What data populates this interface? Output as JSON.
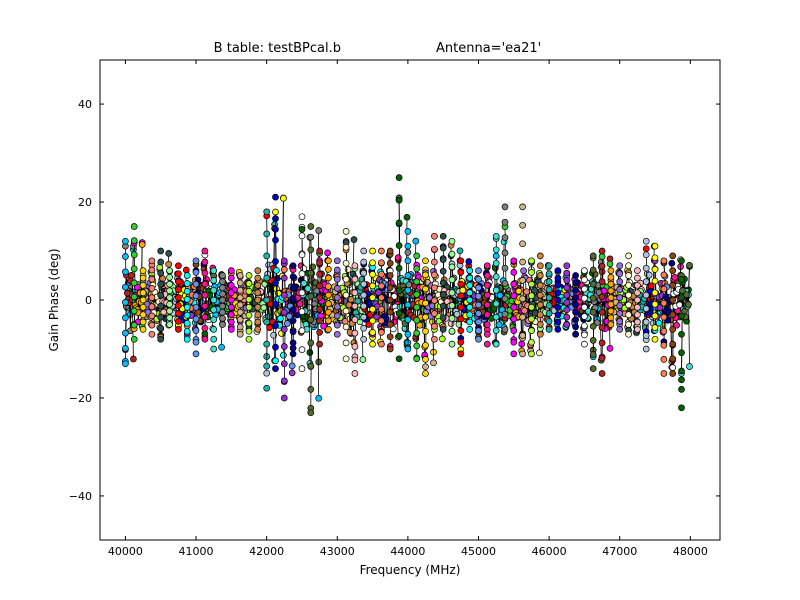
{
  "chart_data": {
    "type": "scatter",
    "title": "B table: testBPcal.b",
    "subtitle": "Antenna='ea21'",
    "xlabel": "Frequency (MHz)",
    "ylabel": "Gain Phase (deg)",
    "xlim": [
      39640,
      48420
    ],
    "ylim": [
      -49,
      49
    ],
    "xticks": [
      40000,
      41000,
      42000,
      43000,
      44000,
      45000,
      46000,
      47000,
      48000
    ],
    "yticks": [
      -40,
      -20,
      0,
      20,
      40
    ],
    "xtick_labels": [
      "40000",
      "41000",
      "42000",
      "43000",
      "44000",
      "45000",
      "46000",
      "47000",
      "48000"
    ],
    "ytick_labels": [
      "−40",
      "−20",
      "0",
      "20",
      "40"
    ],
    "grid": false,
    "marker": "circle",
    "connected": true,
    "spw_count": 64,
    "spw_start_mhz": 40000,
    "spw_width_mhz": 125,
    "channels_per_spw": 9,
    "palette": [
      "#00bfff",
      "#808080",
      "#b22222",
      "#32cd32",
      "#ff00ff",
      "#ffa500",
      "#ffd700",
      "#d2b48c",
      "#9370db",
      "#fa8072",
      "#adff2f",
      "#fffacd",
      "#2f4f4f",
      "#cd853f",
      "#ffb6c1",
      "#98fb98",
      "#20b2aa",
      "#b0c4de",
      "#ff0000",
      "#0000cd",
      "#ffff00",
      "#00ffff",
      "#9932cc",
      "#ff7f50",
      "#6495ed",
      "#00008b",
      "#8b4513",
      "#ff1493",
      "#ffffff",
      "#006400",
      "#40e0d0",
      "#556b2f"
    ],
    "series": [
      {
        "spw": 0,
        "min": -13,
        "max": 12
      },
      {
        "spw": 1,
        "min": -8,
        "max": 15
      },
      {
        "spw": 2,
        "min": -6,
        "max": 6
      },
      {
        "spw": 3,
        "min": -7,
        "max": 8
      },
      {
        "spw": 4,
        "min": -8,
        "max": 10
      },
      {
        "spw": 5,
        "min": -5,
        "max": 6
      },
      {
        "spw": 6,
        "min": -6,
        "max": 7
      },
      {
        "spw": 7,
        "min": -8,
        "max": 5
      },
      {
        "spw": 8,
        "min": -11,
        "max": 8
      },
      {
        "spw": 9,
        "min": -8,
        "max": 10
      },
      {
        "spw": 10,
        "min": -10,
        "max": 6
      },
      {
        "spw": 11,
        "min": -5,
        "max": 5
      },
      {
        "spw": 12,
        "min": -6,
        "max": 6
      },
      {
        "spw": 13,
        "min": -7,
        "max": 5
      },
      {
        "spw": 14,
        "min": -8,
        "max": 5
      },
      {
        "spw": 15,
        "min": -6,
        "max": 6
      },
      {
        "spw": 16,
        "min": -18,
        "max": 18
      },
      {
        "spw": 17,
        "min": -14,
        "max": 21
      },
      {
        "spw": 18,
        "min": -20,
        "max": 8
      },
      {
        "spw": 19,
        "min": -11,
        "max": 7
      },
      {
        "spw": 20,
        "min": -14,
        "max": 17
      },
      {
        "spw": 21,
        "min": -23,
        "max": 15
      },
      {
        "spw": 22,
        "min": -9,
        "max": 10
      },
      {
        "spw": 23,
        "min": -6,
        "max": 8
      },
      {
        "spw": 24,
        "min": -7,
        "max": 8
      },
      {
        "spw": 25,
        "min": -12,
        "max": 14
      },
      {
        "spw": 26,
        "min": -15,
        "max": 7
      },
      {
        "spw": 27,
        "min": -8,
        "max": 10
      },
      {
        "spw": 28,
        "min": -9,
        "max": 10
      },
      {
        "spw": 29,
        "min": -9,
        "max": 10
      },
      {
        "spw": 30,
        "min": -10,
        "max": 10
      },
      {
        "spw": 31,
        "min": -12,
        "max": 25
      },
      {
        "spw": 32,
        "min": -10,
        "max": 14
      },
      {
        "spw": 33,
        "min": -12,
        "max": 9
      },
      {
        "spw": 34,
        "min": -15,
        "max": 8
      },
      {
        "spw": 35,
        "min": -8,
        "max": 13
      },
      {
        "spw": 36,
        "min": -6,
        "max": 13
      },
      {
        "spw": 37,
        "min": -9,
        "max": 12
      },
      {
        "spw": 38,
        "min": -11,
        "max": 8
      },
      {
        "spw": 39,
        "min": -6,
        "max": 6
      },
      {
        "spw": 40,
        "min": -8,
        "max": 6
      },
      {
        "spw": 41,
        "min": -9,
        "max": 7
      },
      {
        "spw": 42,
        "min": -9,
        "max": 13
      },
      {
        "spw": 43,
        "min": -6,
        "max": 19
      },
      {
        "spw": 44,
        "min": -11,
        "max": 8
      },
      {
        "spw": 45,
        "min": -11,
        "max": 19
      },
      {
        "spw": 46,
        "min": -11,
        "max": 8
      },
      {
        "spw": 47,
        "min": -7,
        "max": 9
      },
      {
        "spw": 48,
        "min": -6,
        "max": 7
      },
      {
        "spw": 49,
        "min": -6,
        "max": 6
      },
      {
        "spw": 50,
        "min": -5,
        "max": 7
      },
      {
        "spw": 51,
        "min": -7,
        "max": 5
      },
      {
        "spw": 52,
        "min": -9,
        "max": 6
      },
      {
        "spw": 53,
        "min": -14,
        "max": 9
      },
      {
        "spw": 54,
        "min": -15,
        "max": 10
      },
      {
        "spw": 55,
        "min": -5,
        "max": 6
      },
      {
        "spw": 56,
        "min": -6,
        "max": 7
      },
      {
        "spw": 57,
        "min": -7,
        "max": 9
      },
      {
        "spw": 58,
        "min": -6,
        "max": 6
      },
      {
        "spw": 59,
        "min": -10,
        "max": 12
      },
      {
        "spw": 60,
        "min": -8,
        "max": 11
      },
      {
        "spw": 61,
        "min": -15,
        "max": 8
      },
      {
        "spw": 62,
        "min": -15,
        "max": 9
      },
      {
        "spw": 63,
        "min": -22,
        "max": 8
      }
    ]
  }
}
